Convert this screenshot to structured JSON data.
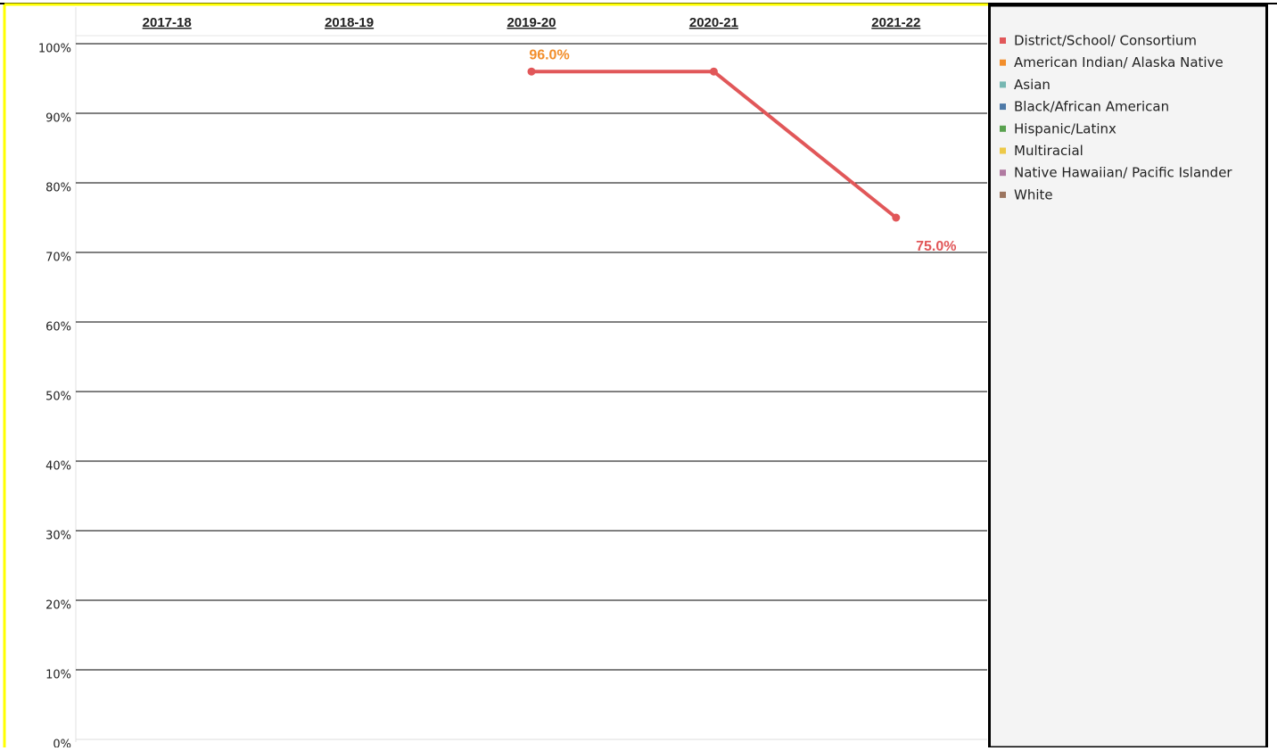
{
  "chart_data": {
    "type": "line",
    "categories": [
      "2017-18",
      "2018-19",
      "2019-20",
      "2020-21",
      "2021-22"
    ],
    "series": [
      {
        "name": "District/School/ Consortium",
        "color": "#e15759",
        "values": [
          null,
          null,
          96,
          96,
          75
        ],
        "value_labels": [
          null,
          null,
          "96.0%",
          null,
          "75.0%"
        ],
        "value_label_colors": [
          null,
          null,
          "#f28e2b",
          null,
          "#e15759"
        ]
      },
      {
        "name": "American Indian/ Alaska Native",
        "color": "#f28e2b",
        "values": [
          null,
          null,
          null,
          null,
          null
        ]
      },
      {
        "name": "Asian",
        "color": "#76b7b2",
        "values": [
          null,
          null,
          null,
          null,
          null
        ]
      },
      {
        "name": "Black/African American",
        "color": "#4e79a7",
        "values": [
          null,
          null,
          null,
          null,
          null
        ]
      },
      {
        "name": "Hispanic/Latinx",
        "color": "#59a14f",
        "values": [
          null,
          null,
          null,
          null,
          null
        ]
      },
      {
        "name": "Multiracial",
        "color": "#edc948",
        "values": [
          null,
          null,
          null,
          null,
          null
        ]
      },
      {
        "name": "Native Hawaiian/ Pacific Islander",
        "color": "#b07aa1",
        "values": [
          null,
          null,
          null,
          null,
          null
        ]
      },
      {
        "name": "White",
        "color": "#9c755f",
        "values": [
          null,
          null,
          null,
          null,
          null
        ]
      }
    ],
    "ylim": [
      0,
      100
    ],
    "yticks": [
      {
        "value": 0,
        "label": "0%"
      },
      {
        "value": 10,
        "label": "10%"
      },
      {
        "value": 20,
        "label": "20%"
      },
      {
        "value": 30,
        "label": "30%"
      },
      {
        "value": 40,
        "label": "40%"
      },
      {
        "value": 50,
        "label": "50%"
      },
      {
        "value": 60,
        "label": "60%"
      },
      {
        "value": 70,
        "label": "70%"
      },
      {
        "value": 80,
        "label": "80%"
      },
      {
        "value": 90,
        "label": "90%"
      },
      {
        "value": 100,
        "label": "100%"
      }
    ],
    "grid": true,
    "legend": "right"
  }
}
